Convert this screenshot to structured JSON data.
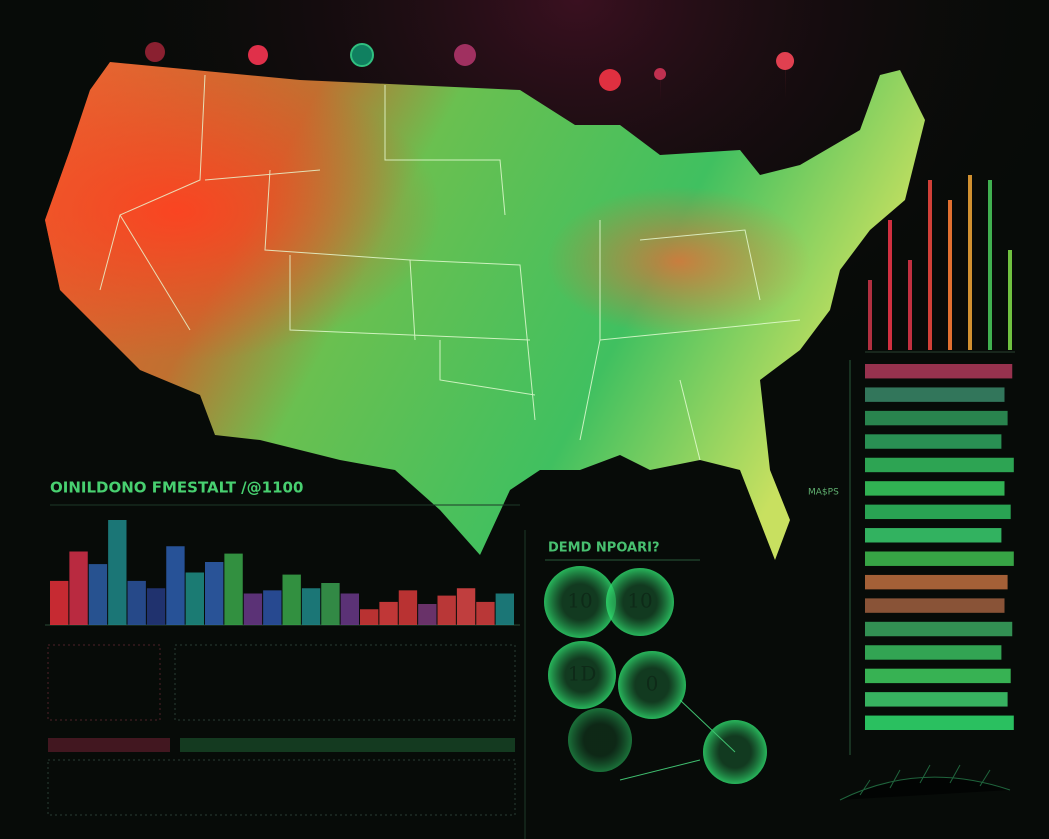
{
  "title": "OINILDONO FMESTALT /@1100",
  "panel_title": "DEMD NPOARI?",
  "badge": "MA$PS",
  "gauges": [
    {
      "label": "10"
    },
    {
      "label": "10"
    },
    {
      "label": "1D"
    },
    {
      "label": "0"
    }
  ],
  "bar_chart": {
    "values": [
      42,
      70,
      58,
      100,
      42,
      35,
      75,
      50,
      60,
      68,
      30,
      33,
      48,
      35,
      40,
      30,
      15,
      22,
      33,
      20,
      28,
      35,
      22,
      30
    ],
    "colors": [
      "#e8303a",
      "#d8304a",
      "#2d5fa8",
      "#1f8a8a",
      "#2c55a0",
      "#243a80",
      "#2d5fb0",
      "#1f8f86",
      "#2f60b0",
      "#3aa84a",
      "#6a3a8a",
      "#2d55a8",
      "#3aa84a",
      "#1f8a8a",
      "#3aa050",
      "#6a3a8a",
      "#d83a3a",
      "#e04040",
      "#d83a3a",
      "#7a3a7a",
      "#d84040",
      "#e04848",
      "#d84040",
      "#1f8a8a"
    ]
  },
  "spike_chart": {
    "values": [
      70,
      130,
      90,
      170,
      150,
      175,
      170,
      100
    ],
    "colors": [
      "#b03040",
      "#d03040",
      "#c03040",
      "#d04038",
      "#e07030",
      "#d09030",
      "#40b050",
      "#70c040"
    ]
  },
  "meter_bars": {
    "values": [
      95,
      90,
      92,
      88,
      96,
      90,
      94,
      88,
      96,
      92,
      90,
      95,
      88,
      94,
      92,
      96
    ],
    "colors": [
      "#b03a5a",
      "#3a8a6a",
      "#2f9a5a",
      "#2fa860",
      "#34c060",
      "#38d060",
      "#2fc060",
      "#3ad070",
      "#40c050",
      "#c07040",
      "#a06040",
      "#3aa860",
      "#3ac060",
      "#40d060",
      "#40d070",
      "#30e070"
    ]
  }
}
